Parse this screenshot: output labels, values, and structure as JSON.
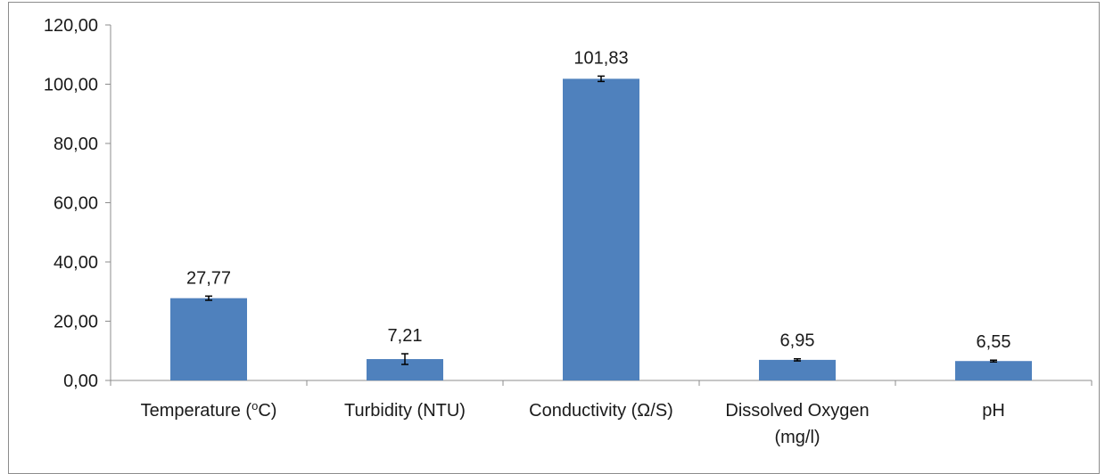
{
  "chart_data": {
    "type": "bar",
    "categories": [
      "Temperature (oC)",
      "Turbidity (NTU)",
      "Conductivity (Ω/S)",
      "Dissolved Oxygen (mg/l)",
      "pH"
    ],
    "category_lines": [
      [
        {
          "t": "Temperature ("
        },
        {
          "t": "o",
          "sup": true
        },
        {
          "t": "C)"
        }
      ],
      [
        {
          "t": "Turbidity (NTU)"
        }
      ],
      [
        {
          "t": "Conductivity (Ω/S)"
        }
      ],
      [
        {
          "t": "Dissolved Oxygen"
        }
      ],
      [
        {
          "t": "pH"
        }
      ]
    ],
    "category_second_lines": [
      "",
      "",
      "",
      "(mg/l)",
      ""
    ],
    "values": [
      27.77,
      7.21,
      101.83,
      6.95,
      6.55
    ],
    "value_labels": [
      "27,77",
      "7,21",
      "101,83",
      "6,95",
      "6,55"
    ],
    "error": [
      0.7,
      1.8,
      0.9,
      0.35,
      0.3
    ],
    "y_ticks": [
      "0,00",
      "20,00",
      "40,00",
      "60,00",
      "80,00",
      "100,00",
      "120,00"
    ],
    "y_tick_values": [
      0,
      20,
      40,
      60,
      80,
      100,
      120
    ],
    "ylim": [
      0,
      120
    ],
    "title": "",
    "xlabel": "",
    "ylabel": "",
    "grid": false,
    "legend": "none",
    "bar_color": "#4f81bd"
  }
}
